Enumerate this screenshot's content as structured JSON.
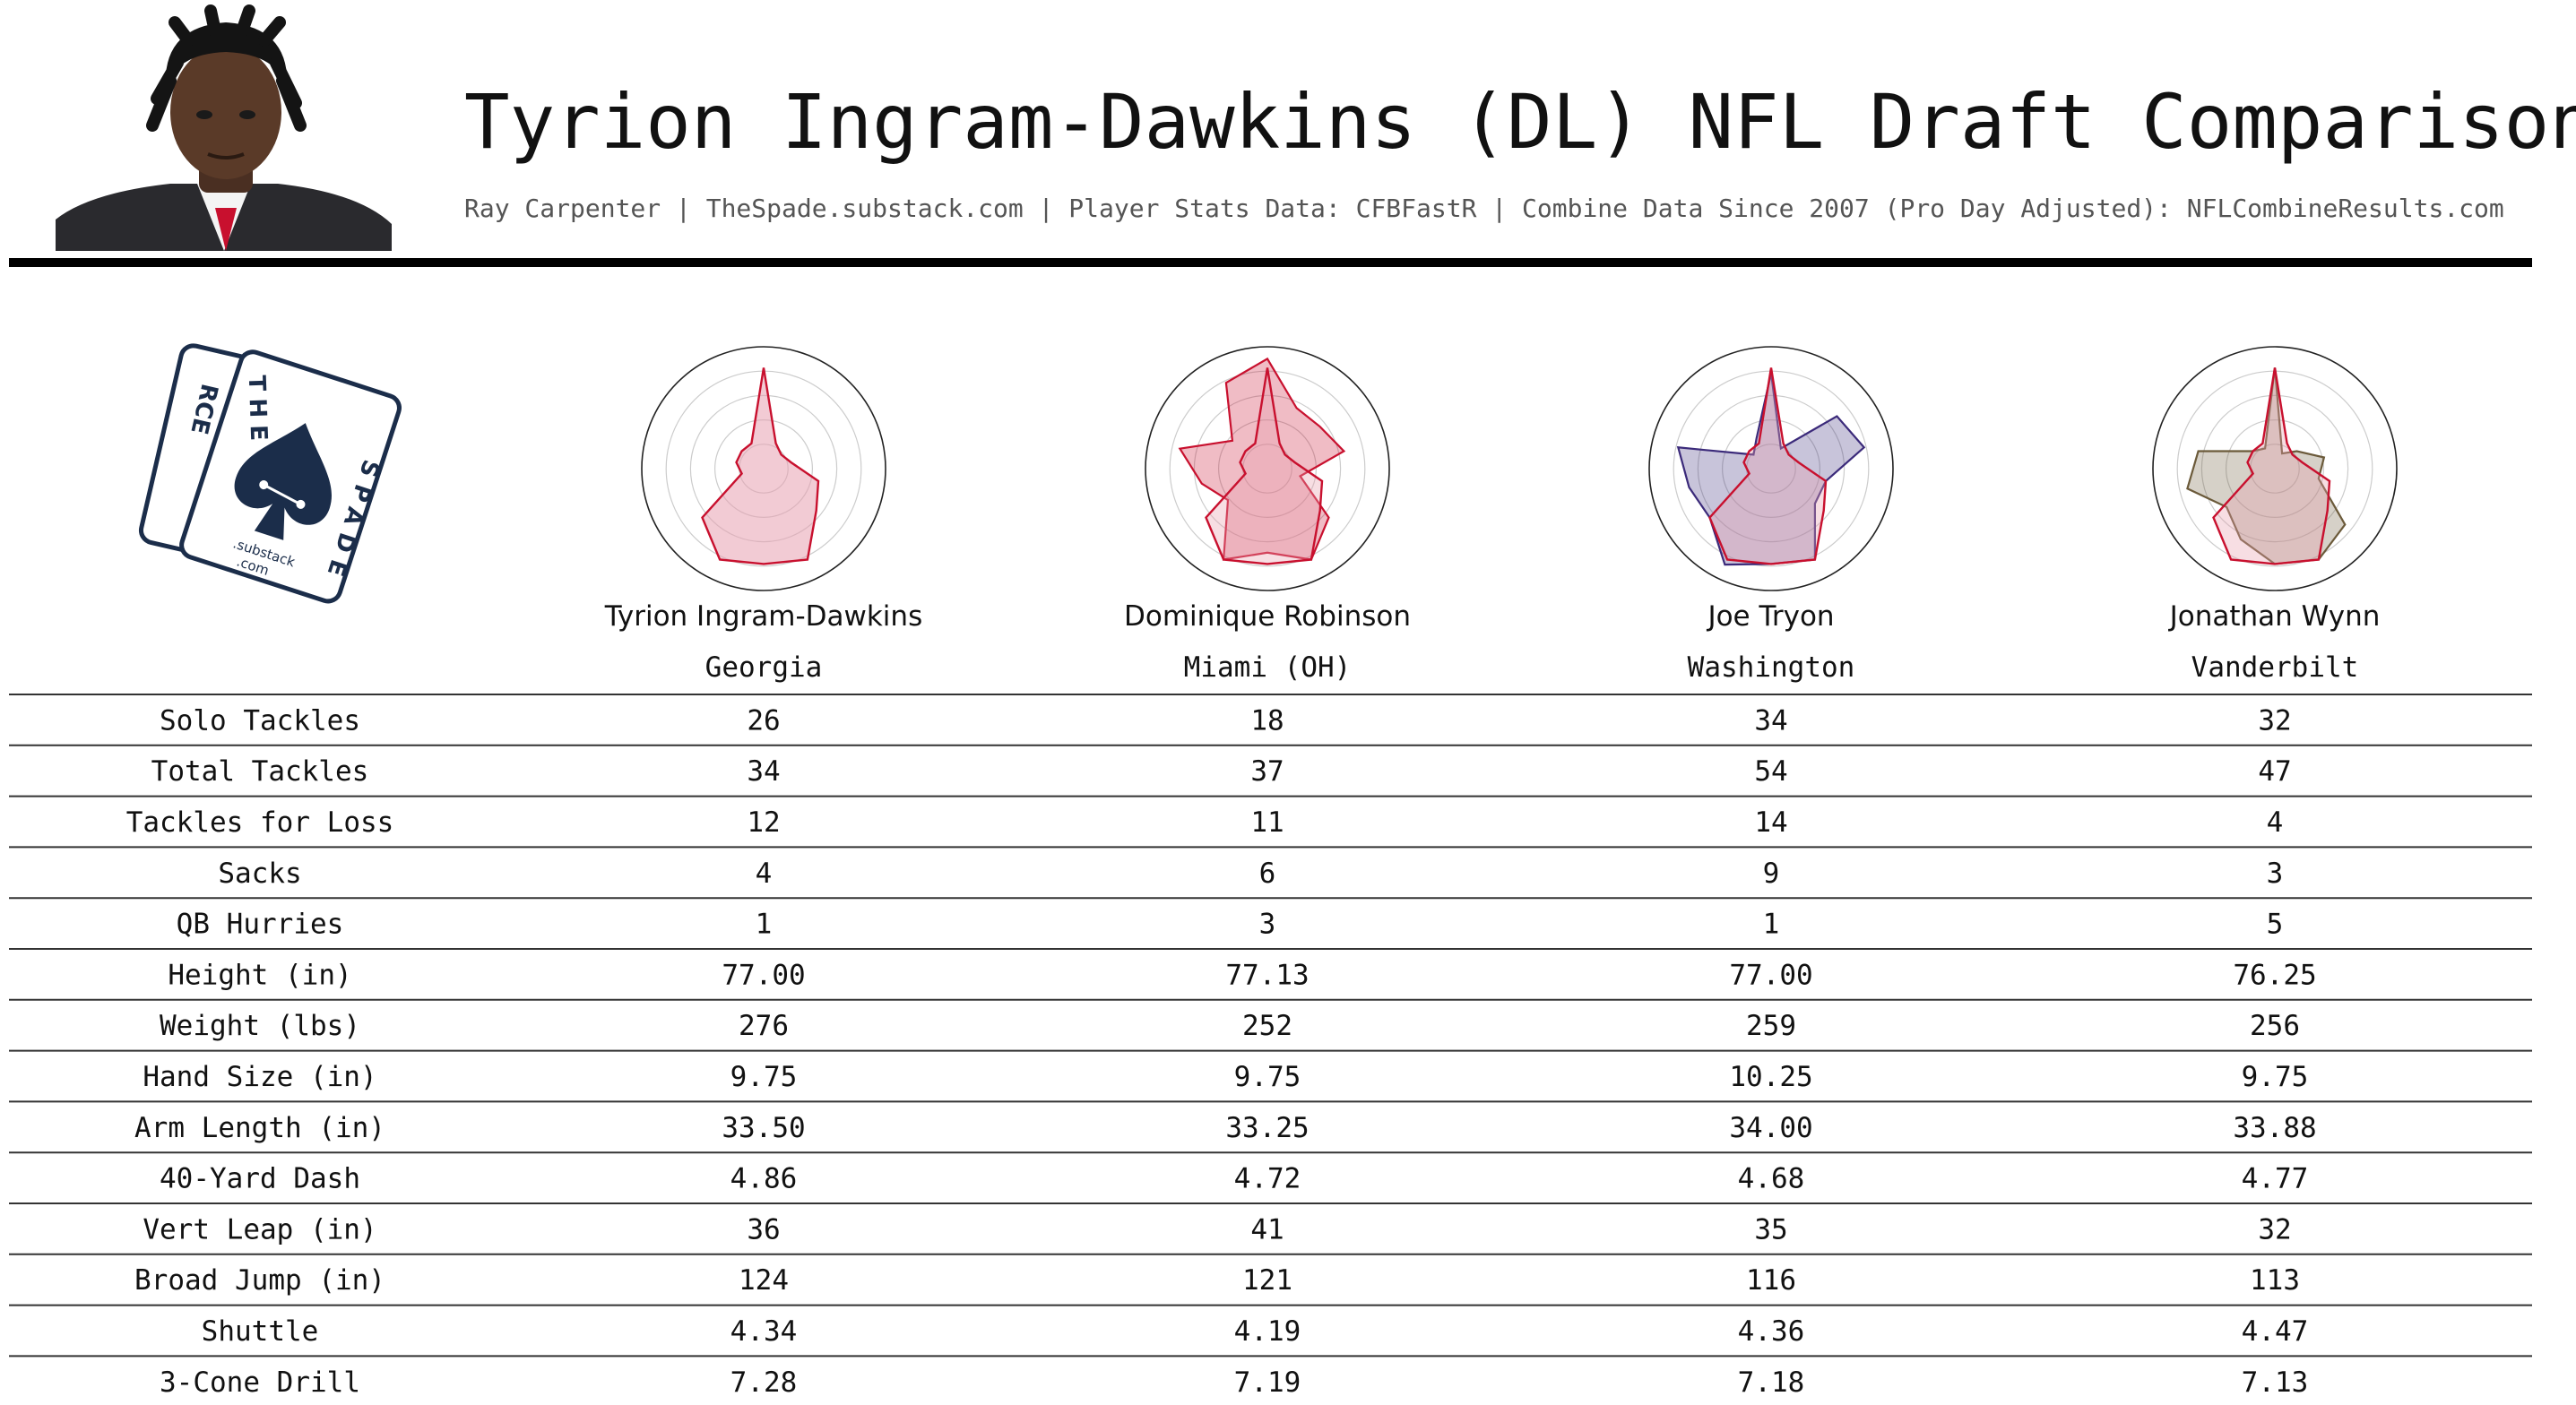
{
  "header": {
    "title": "Tyrion Ingram-Dawkins (DL) NFL Draft Comparison",
    "subtitle": "Ray Carpenter | TheSpade.substack.com | Player Stats Data: CFBFastR | Combine Data Since 2007 (Pro Day Adjusted): NFLCombineResults.com"
  },
  "logo": {
    "card_text_left": "RCE",
    "card_text_top": "THE",
    "card_text_right": "SPADE",
    "card_text_bottom": "E",
    "domain_line1": ".substack",
    "domain_line2": ".com"
  },
  "colors": {
    "target": "#c8102e",
    "target_fill": "#e8a0b0",
    "comp_1": "#c8102e",
    "comp_2": "#3b2a7a",
    "comp_3": "#6b5a3a"
  },
  "players": [
    {
      "name": "Tyrion Ingram-Dawkins",
      "school": "Georgia"
    },
    {
      "name": "Dominique Robinson",
      "school": "Miami (OH)"
    },
    {
      "name": "Joe Tryon",
      "school": "Washington"
    },
    {
      "name": "Jonathan Wynn",
      "school": "Vanderbilt"
    }
  ],
  "chart_data": {
    "type": "table",
    "columns": [
      "Tyrion Ingram-Dawkins",
      "Dominique Robinson",
      "Joe Tryon",
      "Jonathan Wynn"
    ],
    "rows": [
      {
        "label": "Solo Tackles",
        "values": [
          "26",
          "18",
          "34",
          "32"
        ]
      },
      {
        "label": "Total Tackles",
        "values": [
          "34",
          "37",
          "54",
          "47"
        ]
      },
      {
        "label": "Tackles for Loss",
        "values": [
          "12",
          "11",
          "14",
          "4"
        ]
      },
      {
        "label": "Sacks",
        "values": [
          "4",
          "6",
          "9",
          "3"
        ]
      },
      {
        "label": "QB Hurries",
        "values": [
          "1",
          "3",
          "1",
          "5"
        ]
      },
      {
        "label": "Height (in)",
        "values": [
          "77.00",
          "77.13",
          "77.00",
          "76.25"
        ]
      },
      {
        "label": "Weight (lbs)",
        "values": [
          "276",
          "252",
          "259",
          "256"
        ]
      },
      {
        "label": "Hand Size (in)",
        "values": [
          "9.75",
          "9.75",
          "10.25",
          "9.75"
        ]
      },
      {
        "label": "Arm Length (in)",
        "values": [
          "33.50",
          "33.25",
          "34.00",
          "33.88"
        ]
      },
      {
        "label": "40-Yard Dash",
        "values": [
          "4.86",
          "4.72",
          "4.68",
          "4.77"
        ]
      },
      {
        "label": "Vert Leap (in)",
        "values": [
          "36",
          "41",
          "35",
          "32"
        ]
      },
      {
        "label": "Broad Jump (in)",
        "values": [
          "124",
          "121",
          "116",
          "113"
        ]
      },
      {
        "label": "Shuttle",
        "values": [
          "4.34",
          "4.19",
          "4.36",
          "4.47"
        ]
      },
      {
        "label": "3-Cone Drill",
        "values": [
          "7.28",
          "7.19",
          "7.18",
          "7.13"
        ]
      }
    ],
    "radar": {
      "axes": 14,
      "rlim": [
        0,
        1
      ],
      "target": [
        0.9,
        0.25,
        0.2,
        0.25,
        0.5,
        0.6,
        0.9,
        0.85,
        0.9,
        0.7,
        0.2,
        0.25,
        0.25,
        0.25
      ],
      "comparisons": [
        [
          0.98,
          0.6,
          0.6,
          0.7,
          0.3,
          0.7,
          0.9,
          0.75,
          0.9,
          0.45,
          0.6,
          0.8,
          0.4,
          0.85
        ],
        [
          0.85,
          0.2,
          0.75,
          0.85,
          0.5,
          0.5,
          0.9,
          0.85,
          0.95,
          0.7,
          0.75,
          0.85,
          0.2,
          0.3
        ],
        [
          0.9,
          0.15,
          0.25,
          0.45,
          0.4,
          0.8,
          0.9,
          0.85,
          0.7,
          0.55,
          0.8,
          0.7,
          0.25,
          0.2
        ]
      ]
    }
  }
}
